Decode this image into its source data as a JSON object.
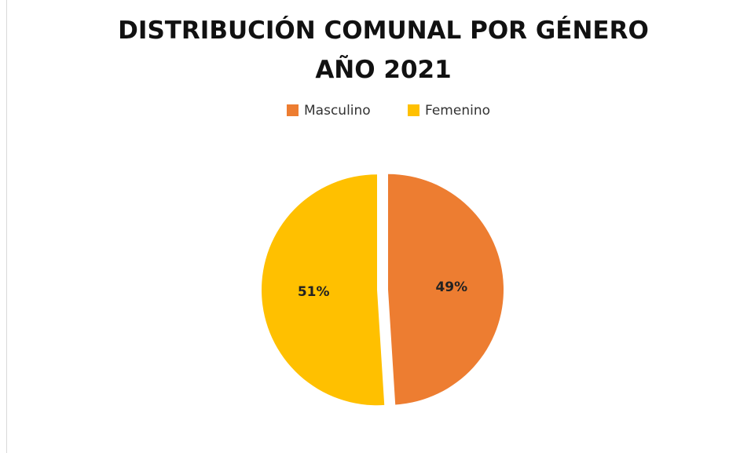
{
  "chart_data": {
    "type": "pie",
    "title": "DISTRIBUCIÓN COMUNAL POR GÉNERO AÑO 2021",
    "categories": [
      "Masculino",
      "Femenino"
    ],
    "values": [
      49,
      51
    ],
    "value_labels": [
      "49%",
      "51%"
    ],
    "colors": [
      "#ED7D31",
      "#FFC000"
    ],
    "legend": "top"
  }
}
